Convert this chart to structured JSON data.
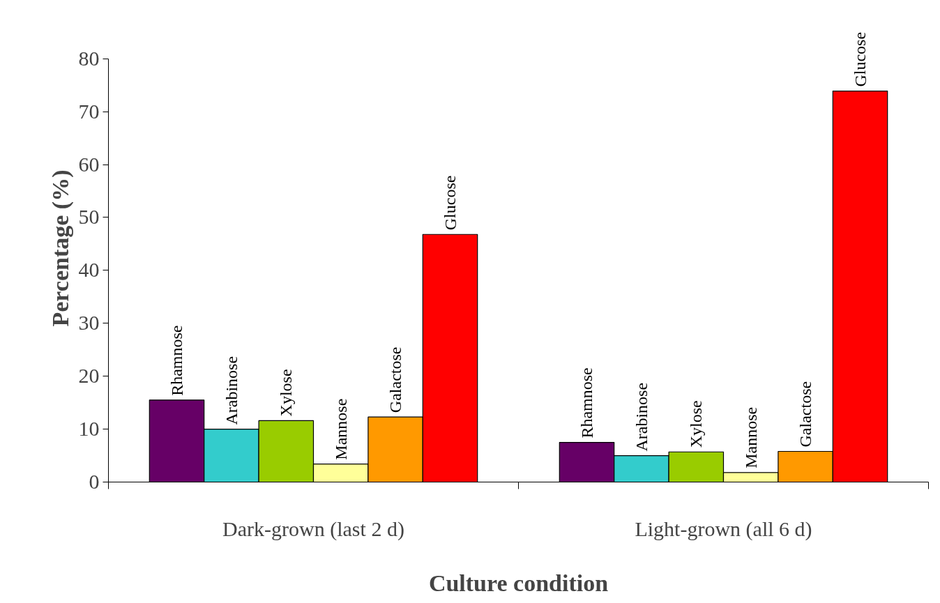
{
  "chart_data": {
    "type": "bar",
    "xlabel": "Culture condition",
    "ylabel": "Percentage (%)",
    "categories": [
      "Dark-grown (last 2 d)",
      "Light-grown (all 6 d)"
    ],
    "series": [
      {
        "name": "Rhamnose",
        "color": "#660066",
        "values": [
          15.5,
          7.5
        ]
      },
      {
        "name": "Arabinose",
        "color": "#33cccc",
        "values": [
          10.0,
          5.0
        ]
      },
      {
        "name": "Xylose",
        "color": "#99cc00",
        "values": [
          11.6,
          5.7
        ]
      },
      {
        "name": "Mannose",
        "color": "#ffff99",
        "values": [
          3.4,
          1.8
        ]
      },
      {
        "name": "Galactose",
        "color": "#ff9900",
        "values": [
          12.3,
          5.8
        ]
      },
      {
        "name": "Glucose",
        "color": "#ff0000",
        "values": [
          46.8,
          73.9
        ]
      }
    ],
    "ylim": [
      0,
      80
    ],
    "yticks": [
      0,
      10,
      20,
      30,
      40,
      50,
      60,
      70,
      80
    ],
    "grid": false
  }
}
